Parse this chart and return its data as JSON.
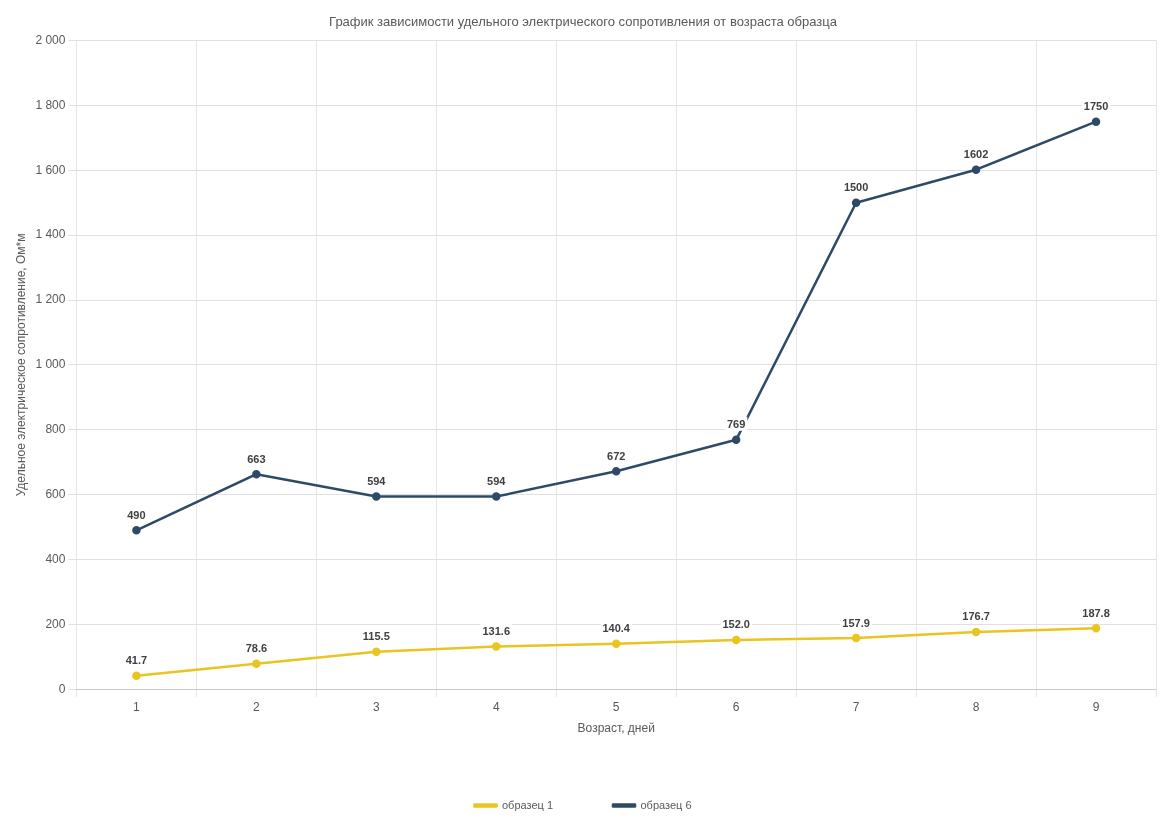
{
  "chart_data": {
    "type": "line",
    "title": "График зависимости удельного электрического сопротивления от возраста образца",
    "xlabel": "Возраст, дней",
    "ylabel": "Удельное электрическое сопротивление, Ом*м",
    "categories": [
      "1",
      "2",
      "3",
      "4",
      "5",
      "6",
      "7",
      "8",
      "9"
    ],
    "series": [
      {
        "name": "образец 1",
        "color": "#e8c520",
        "values": [
          41.7,
          78.6,
          115.5,
          131.6,
          140.4,
          152.0,
          157.9,
          176.7,
          187.8
        ],
        "value_labels": [
          "41.7",
          "78.6",
          "115.5",
          "131.6",
          "140.4",
          "152.0",
          "157.9",
          "176.7",
          "187.8"
        ]
      },
      {
        "name": "образец 6",
        "color": "#2f4a66",
        "values": [
          490,
          663,
          594,
          594,
          672,
          769,
          1500,
          1602,
          1750
        ],
        "value_labels": [
          "490",
          "663",
          "594",
          "594",
          "672",
          "769",
          "1500",
          "1602",
          "1750"
        ]
      }
    ],
    "ylim": [
      0,
      2000
    ],
    "yticks": [
      0,
      200,
      400,
      600,
      800,
      {
        "value": 1000,
        "label": "1 000"
      },
      {
        "value": 1200,
        "label": "1 200"
      },
      {
        "value": 1400,
        "label": "1 400"
      },
      {
        "value": 1600,
        "label": "1 600"
      },
      {
        "value": 1800,
        "label": "1 800"
      },
      {
        "value": 2000,
        "label": "2 000"
      }
    ],
    "grid": true,
    "legend": "bottom",
    "marker": "circle",
    "line_style": "solid"
  }
}
